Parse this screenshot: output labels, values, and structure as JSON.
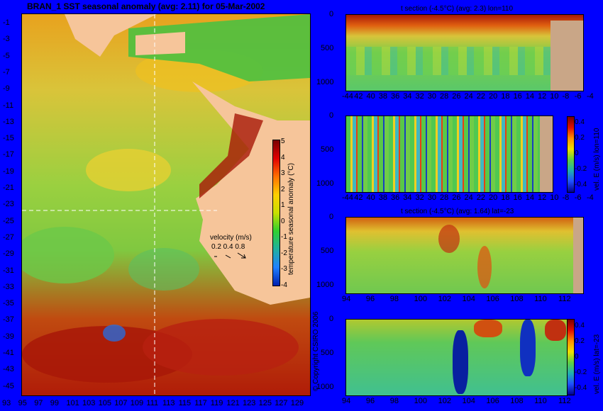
{
  "map": {
    "title": "BRAN_1  SST seasonal anomaly  (avg: 2.11)  for 05-Mar-2002",
    "lat_ticks": [
      "-1",
      "-3",
      "-5",
      "-7",
      "-9",
      "-11",
      "-13",
      "-15",
      "-17",
      "-19",
      "-21",
      "-23",
      "-25",
      "-27",
      "-29",
      "-31",
      "-33",
      "-35",
      "-37",
      "-39",
      "-41",
      "-43",
      "-45"
    ],
    "lon_ticks": [
      "93",
      "95",
      "97",
      "99",
      "101",
      "103",
      "105",
      "107",
      "109",
      "111",
      "113",
      "115",
      "117",
      "119",
      "121",
      "123",
      "125",
      "127",
      "129"
    ],
    "colorbar_label": "temperature seasonal anomaly (°C)",
    "colorbar_ticks": [
      "5",
      "4",
      "3",
      "2",
      "1",
      "0",
      "-1",
      "-2",
      "-3",
      "-4"
    ],
    "velocity_label": "velocity (m/s)",
    "velocity_scale": "0.2 0.4 0.8",
    "copyright": "© Copyright CSIRO 2006"
  },
  "panels": [
    {
      "title": "t section (-4.5°C) (avg: 2.3) lon=110",
      "x_ticks": [
        "-44",
        "42",
        "40",
        "38",
        "36",
        "34",
        "32",
        "30",
        "28",
        "26",
        "24",
        "22",
        "20",
        "18",
        "16",
        "14",
        "12",
        "10",
        "-8",
        "-6",
        "-4"
      ],
      "y_ticks": [
        "0",
        "500",
        "1000"
      ],
      "colorbar": null
    },
    {
      "title": "",
      "x_ticks": [
        "-44",
        "42",
        "40",
        "38",
        "36",
        "34",
        "32",
        "30",
        "28",
        "26",
        "24",
        "22",
        "20",
        "18",
        "16",
        "14",
        "12",
        "10",
        "-8",
        "-6",
        "-4"
      ],
      "y_ticks": [
        "0",
        "500",
        "1000"
      ],
      "colorbar": {
        "label": "vel. E (m/s) lon=110",
        "ticks": [
          "0.4",
          "0.2",
          "0",
          "-0.2",
          "-0.4"
        ]
      }
    },
    {
      "title": "t section (-4.5°C) (avg: 1.64) lat=-23",
      "x_ticks": [
        "94",
        "96",
        "98",
        "100",
        "102",
        "104",
        "106",
        "108",
        "110",
        "112"
      ],
      "y_ticks": [
        "0",
        "500",
        "1000"
      ],
      "colorbar": null
    },
    {
      "title": "",
      "x_ticks": [
        "94",
        "96",
        "98",
        "100",
        "102",
        "104",
        "106",
        "108",
        "110",
        "112"
      ],
      "y_ticks": [
        "0",
        "500",
        "1000"
      ],
      "colorbar": {
        "label": "vel. E (m/s) lat=-23",
        "ticks": [
          "0.4",
          "0.2",
          "0",
          "-0.2",
          "-0.4"
        ]
      }
    }
  ],
  "chart_data": [
    {
      "type": "heatmap",
      "title": "BRAN_1  SST seasonal anomaly  (avg: 2.11)  for 05-Mar-2002",
      "x_range": [
        93,
        130
      ],
      "y_range": [
        -45,
        0
      ],
      "colorbar_label": "temperature seasonal anomaly (°C)",
      "color_range": [
        -4,
        5
      ]
    },
    {
      "type": "heatmap",
      "title": "t section (-4.5°C) (avg: 2.3) lon=110",
      "x_range": [
        -45,
        -3
      ],
      "y_range": [
        1000,
        0
      ]
    },
    {
      "type": "heatmap",
      "title": "",
      "x_range": [
        -45,
        -3
      ],
      "y_range": [
        1000,
        0
      ],
      "colorbar_label": "vel. E (m/s) lon=110",
      "color_range": [
        -0.4,
        0.4
      ]
    },
    {
      "type": "heatmap",
      "title": "t section (-4.5°C) (avg: 1.64) lat=-23",
      "x_range": [
        93,
        114
      ],
      "y_range": [
        1000,
        0
      ]
    },
    {
      "type": "heatmap",
      "title": "",
      "x_range": [
        93,
        114
      ],
      "y_range": [
        1000,
        0
      ],
      "colorbar_label": "vel. E (m/s) lat=-23",
      "color_range": [
        -0.4,
        0.4
      ]
    }
  ]
}
